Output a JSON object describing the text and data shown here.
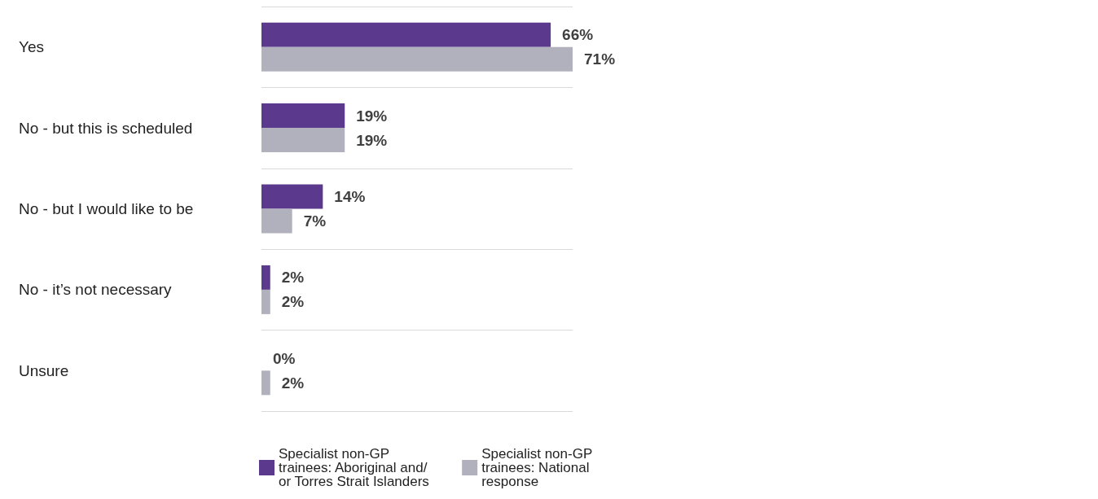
{
  "chart_data": {
    "type": "bar",
    "orientation": "horizontal",
    "categories": [
      "Yes",
      "No - but this is scheduled",
      "No - but I would like to be",
      "No - it’s not necessary",
      "Unsure"
    ],
    "series": [
      {
        "name": "Specialist non-GP trainees: Aboriginal and/or Torres Strait Islanders",
        "color": "#5b3a8e",
        "values": [
          66,
          19,
          14,
          2,
          0
        ],
        "value_labels": [
          "66%",
          "19%",
          "14%",
          "2%",
          "0%"
        ]
      },
      {
        "name": "Specialist non-GP trainees: National response",
        "color": "#b1b0bd",
        "values": [
          71,
          19,
          7,
          2,
          2
        ],
        "value_labels": [
          "71%",
          "19%",
          "7%",
          "2%",
          "2%"
        ]
      }
    ],
    "grid": "y",
    "legend": "bottom",
    "tick_labels": "y"
  }
}
